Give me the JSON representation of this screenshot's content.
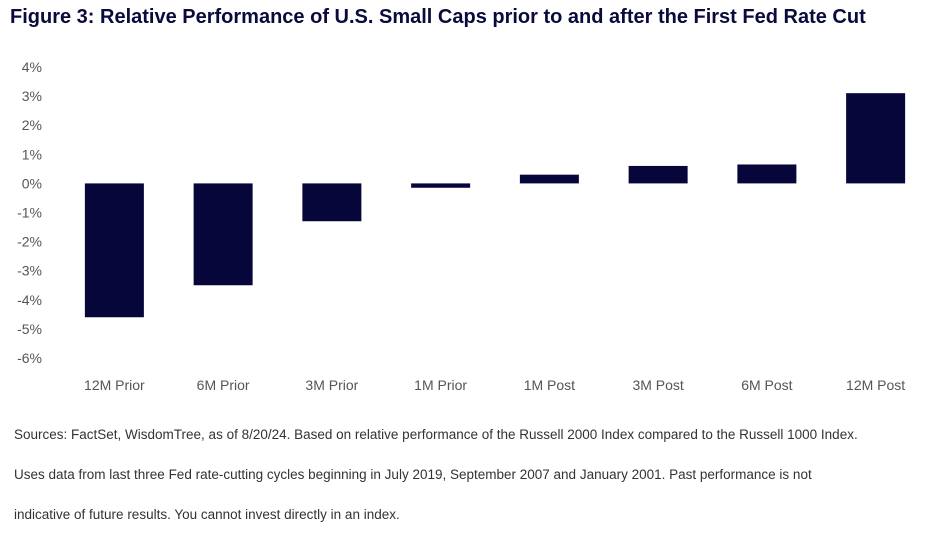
{
  "title": "Figure 3: Relative Performance of U.S. Small Caps prior to and after the First Fed Rate Cut",
  "chart_data": {
    "type": "bar",
    "categories": [
      "12M Prior",
      "6M Prior",
      "3M Prior",
      "1M Prior",
      "1M Post",
      "3M Post",
      "6M Post",
      "12M Post"
    ],
    "values": [
      -4.6,
      -3.5,
      -1.3,
      -0.15,
      0.3,
      0.6,
      0.65,
      3.1
    ],
    "ylim": [
      -6,
      4
    ],
    "yticks": [
      4,
      3,
      2,
      1,
      0,
      -1,
      -2,
      -3,
      -4,
      -5,
      -6
    ],
    "ytick_labels": [
      "4%",
      "3%",
      "2%",
      "1%",
      "0%",
      "-1%",
      "-2%",
      "-3%",
      "-4%",
      "-5%",
      "-6%"
    ],
    "bar_color": "#06063a",
    "grid": false,
    "legend": "none"
  },
  "notes": [
    "Sources: FactSet, WisdomTree, as of 8/20/24. Based on relative performance of the Russell 2000 Index compared to the Russell 1000 Index.",
    "Uses data from last three Fed rate-cutting cycles beginning in July 2019, September 2007 and January 2001. Past performance is not",
    "indicative of future results. You cannot invest directly in an index."
  ]
}
